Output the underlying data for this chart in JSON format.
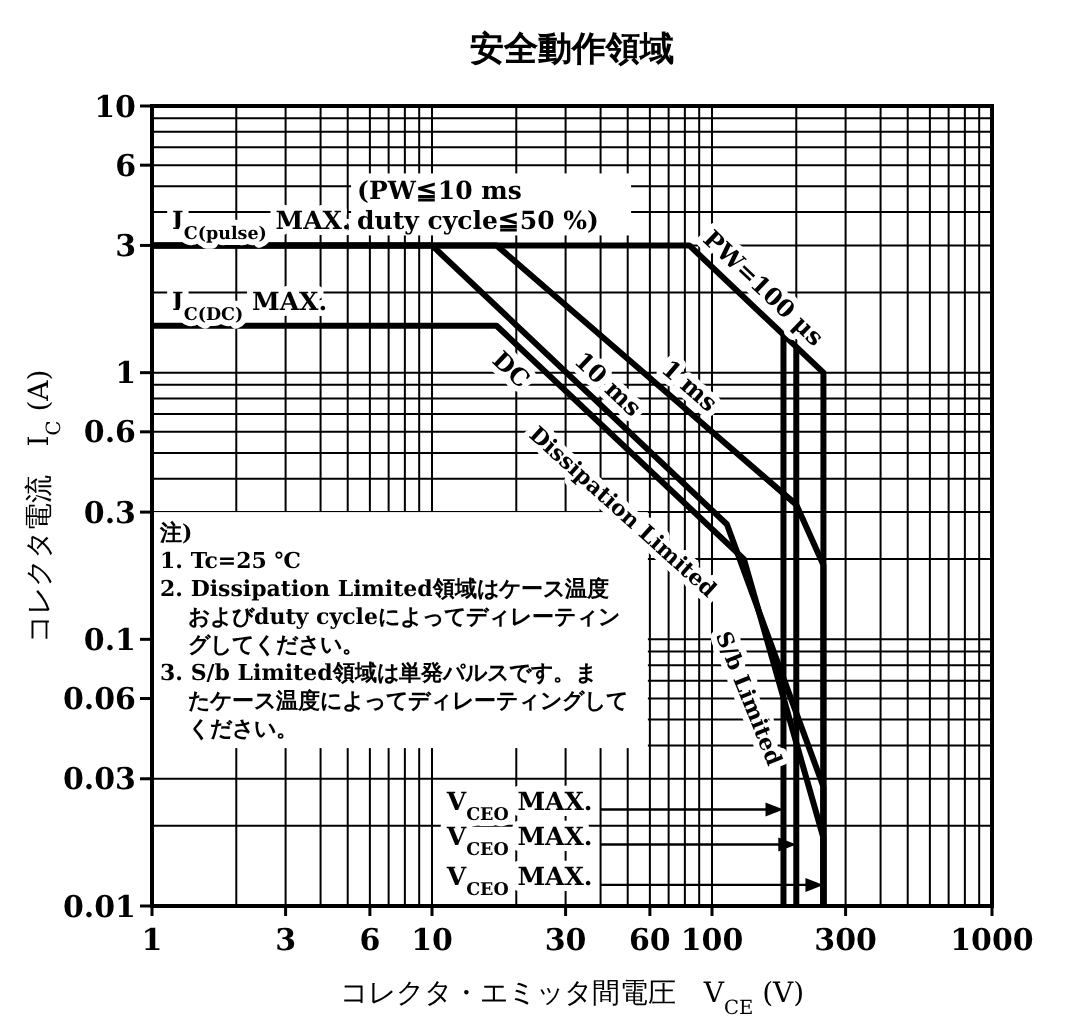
{
  "chart_data": {
    "type": "line",
    "title": "安全動作領域",
    "xlabel": "コレクタ・エミッタ間電圧　V$_{CE}$ (V)",
    "ylabel": "コレクタ電流　I$_{C}$ (A)",
    "log": "xy",
    "grid": true,
    "legend": false,
    "marker": "none",
    "line_style": "solid",
    "xlim": [
      1,
      1000
    ],
    "xticks": [
      1,
      3,
      6,
      10,
      30,
      60,
      100,
      300,
      1000
    ],
    "ylim": [
      0.01,
      10
    ],
    "yticks": [
      0.01,
      0.03,
      0.06,
      0.1,
      0.3,
      0.6,
      1,
      3,
      6,
      10
    ],
    "series": [
      {
        "name": "PW=100 μs",
        "color": "#000000",
        "x": [
          1,
          83,
          250,
          250
        ],
        "values": [
          3,
          3,
          1.0,
          0.01
        ]
      },
      {
        "name": "1 ms",
        "color": "#000000",
        "x": [
          1,
          17,
          200,
          250,
          250
        ],
        "values": [
          3,
          3,
          0.32,
          0.19,
          0.01
        ]
      },
      {
        "name": "10 ms",
        "color": "#000000",
        "x": [
          1,
          10,
          113,
          250,
          250
        ],
        "values": [
          3,
          3,
          0.27,
          0.028,
          0.01
        ]
      },
      {
        "name": "DC",
        "color": "#000000",
        "x": [
          1,
          17,
          130,
          250,
          250
        ],
        "values": [
          1.5,
          1.5,
          0.2,
          0.018,
          0.01
        ]
      },
      {
        "color": "#000000",
        "x": [
          180,
          180
        ],
        "values": [
          1.38,
          0.01
        ]
      },
      {
        "color": "#000000",
        "x": [
          200,
          200
        ],
        "values": [
          1.25,
          0.01
        ]
      }
    ],
    "annotations": [
      {
        "text": "I$_{C(pulse)}$ MAX.",
        "x": 1,
        "y": 3
      },
      {
        "text": "I$_{C(DC)}$ MAX.",
        "x": 1,
        "y": 1.5
      },
      "(PW≦10 ms\nduty cycle≦50 %)",
      "Dissipation Limited",
      "S/b Limited",
      "注)",
      "1. Tc=25 ℃",
      "2. Dissipation Limited領域はケース温度およびduty cycleによってディレーティングしてください。",
      "3. S/b Limited領域は単発パルスです。またケース温度によってディレーティングしてください。",
      {
        "text": "V$_{CEO}$ MAX.",
        "x": 180,
        "y": 0.023
      },
      {
        "text": "V$_{CEO}$ MAX.",
        "x": 200,
        "y": 0.017
      },
      {
        "text": "V$_{CEO}$ MAX.",
        "x": 250,
        "y": 0.012
      }
    ]
  }
}
